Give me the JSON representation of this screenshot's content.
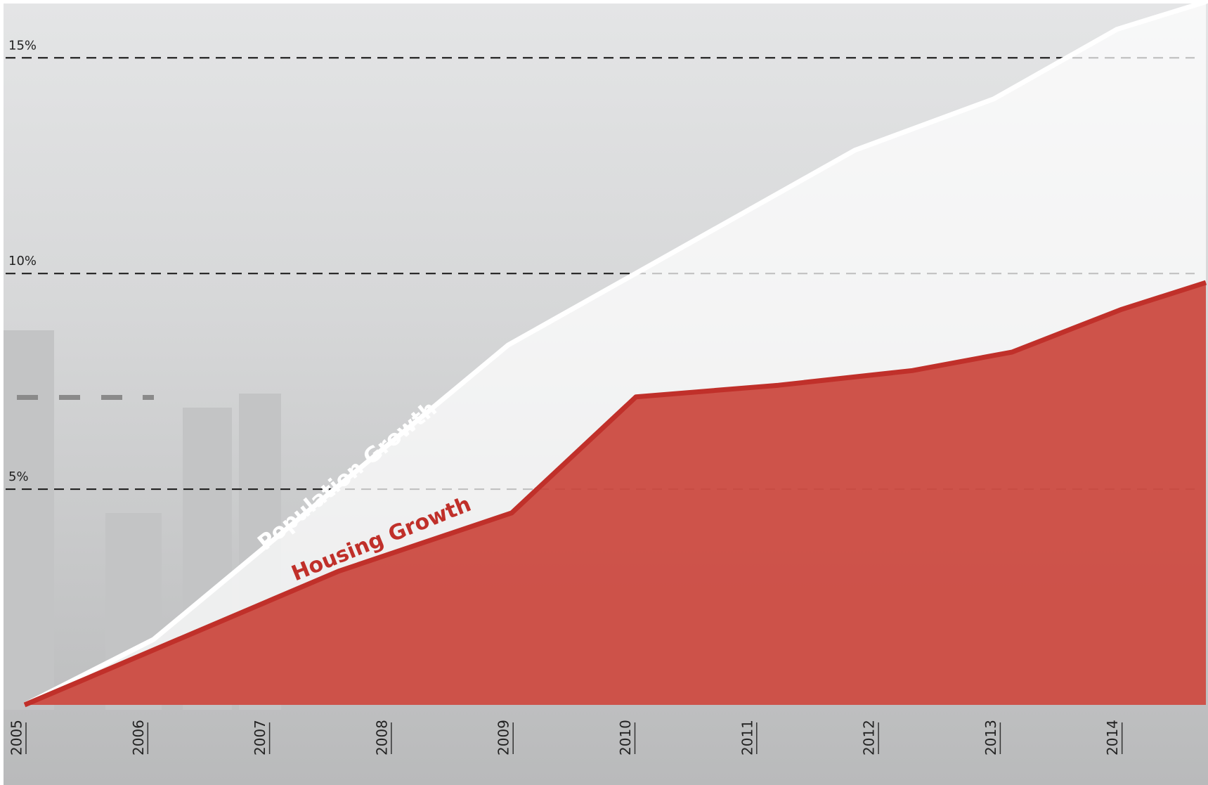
{
  "chart_data": {
    "type": "area",
    "series": [
      {
        "name": "Population Growth",
        "color": "#ffffff",
        "x": [
          2005,
          2006.06,
          2008.97,
          2011.82,
          2012.96,
          2013.97,
          2014.7
        ],
        "values": [
          0,
          1.52,
          8.34,
          12.86,
          14.05,
          15.66,
          16.3
        ]
      },
      {
        "name": "Housing Growth",
        "color": "#c0302a",
        "x": [
          2005,
          2007.58,
          2009.0,
          2010.02,
          2011.19,
          2012.29,
          2013.11,
          2014.0,
          2014.7
        ],
        "values": [
          0,
          3.1,
          4.45,
          7.14,
          7.41,
          7.75,
          8.18,
          9.16,
          9.79
        ]
      }
    ],
    "xlim": [
      2005,
      2014.7
    ],
    "xticks": [
      2005,
      2006,
      2007,
      2008,
      2009,
      2010,
      2011,
      2012,
      2013,
      2014
    ],
    "ylim": [
      0,
      16.34
    ],
    "yticks": [
      {
        "value": 5,
        "label": "5%"
      },
      {
        "value": 10,
        "label": "10%"
      },
      {
        "value": 15,
        "label": "15%"
      }
    ],
    "grid": true
  }
}
